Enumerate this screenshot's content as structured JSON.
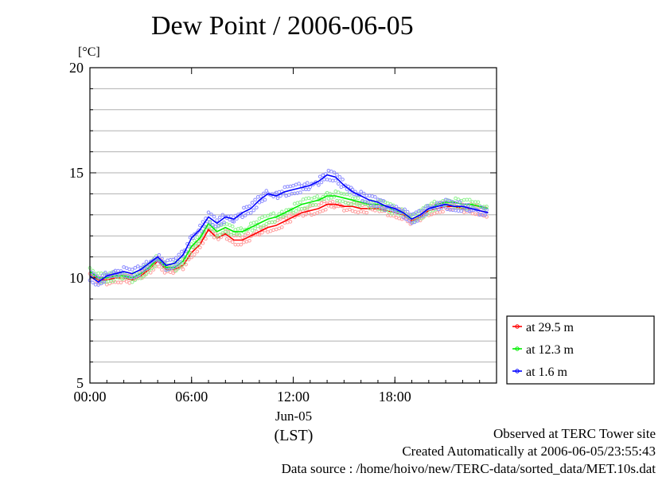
{
  "chart_data": {
    "type": "line",
    "title": "Dew Point / 2006-06-05",
    "ylabel": "[°C]",
    "xlabel": "(LST)",
    "date_label": "Jun-05",
    "ylim": [
      5,
      20
    ],
    "xlim": [
      0,
      24
    ],
    "x_unit": "hour",
    "yticks": [
      "5",
      "10",
      "15",
      "20"
    ],
    "xticks": [
      {
        "value": 0,
        "label": "00:00"
      },
      {
        "value": 6,
        "label": "06:00"
      },
      {
        "value": 12,
        "label": "12:00"
      },
      {
        "value": 18,
        "label": "18:00"
      }
    ],
    "grid_y_step": 1,
    "legend_position": "right",
    "x": [
      0,
      0.5,
      1,
      1.5,
      2,
      2.5,
      3,
      3.5,
      4,
      4.5,
      5,
      5.5,
      6,
      6.5,
      7,
      7.5,
      8,
      8.5,
      9,
      9.5,
      10,
      10.5,
      11,
      11.5,
      12,
      12.5,
      13,
      13.5,
      14,
      14.5,
      15,
      15.5,
      16,
      16.5,
      17,
      17.5,
      18,
      18.5,
      19,
      19.5,
      20,
      20.5,
      21,
      21.5,
      22,
      22.5,
      23,
      23.5
    ],
    "series": [
      {
        "name": "at 29.5 m",
        "color": "#ff0000",
        "values": [
          10.2,
          9.9,
          9.9,
          10.0,
          10.0,
          9.9,
          10.1,
          10.4,
          10.8,
          10.4,
          10.4,
          10.6,
          11.2,
          11.6,
          12.3,
          11.9,
          12.1,
          11.8,
          11.8,
          12.0,
          12.2,
          12.4,
          12.5,
          12.7,
          12.9,
          13.1,
          13.2,
          13.3,
          13.5,
          13.5,
          13.4,
          13.4,
          13.3,
          13.3,
          13.3,
          13.2,
          13.1,
          13.0,
          12.7,
          12.9,
          13.2,
          13.3,
          13.4,
          13.4,
          13.3,
          13.3,
          13.2,
          13.1
        ]
      },
      {
        "name": "at 12.3 m",
        "color": "#00ee00",
        "values": [
          10.3,
          10.0,
          10.0,
          10.1,
          10.1,
          10.0,
          10.2,
          10.5,
          10.9,
          10.5,
          10.5,
          10.8,
          11.5,
          11.9,
          12.6,
          12.2,
          12.4,
          12.2,
          12.2,
          12.4,
          12.6,
          12.8,
          12.9,
          13.1,
          13.3,
          13.5,
          13.6,
          13.7,
          13.9,
          13.9,
          13.8,
          13.7,
          13.6,
          13.5,
          13.5,
          13.4,
          13.2,
          13.1,
          12.8,
          13.0,
          13.3,
          13.5,
          13.6,
          13.6,
          13.5,
          13.5,
          13.4,
          13.3
        ]
      },
      {
        "name": "at 1.6 m",
        "color": "#0000ff",
        "values": [
          10.1,
          9.8,
          10.1,
          10.2,
          10.3,
          10.2,
          10.4,
          10.7,
          11.0,
          10.6,
          10.7,
          11.1,
          11.9,
          12.3,
          12.9,
          12.6,
          12.9,
          12.8,
          13.1,
          13.3,
          13.7,
          14.0,
          13.9,
          14.1,
          14.2,
          14.3,
          14.4,
          14.6,
          14.9,
          14.8,
          14.4,
          14.1,
          13.9,
          13.7,
          13.6,
          13.4,
          13.3,
          13.1,
          12.8,
          13.0,
          13.3,
          13.4,
          13.5,
          13.4,
          13.4,
          13.3,
          13.2,
          13.1
        ]
      }
    ]
  },
  "footer": {
    "observed": "Observed at TERC Tower site",
    "created": "Created Automatically at 2006-06-05/23:55:43",
    "source": "Data source : /home/hoivo/new/TERC-data/sorted_data/MET.10s.dat"
  }
}
